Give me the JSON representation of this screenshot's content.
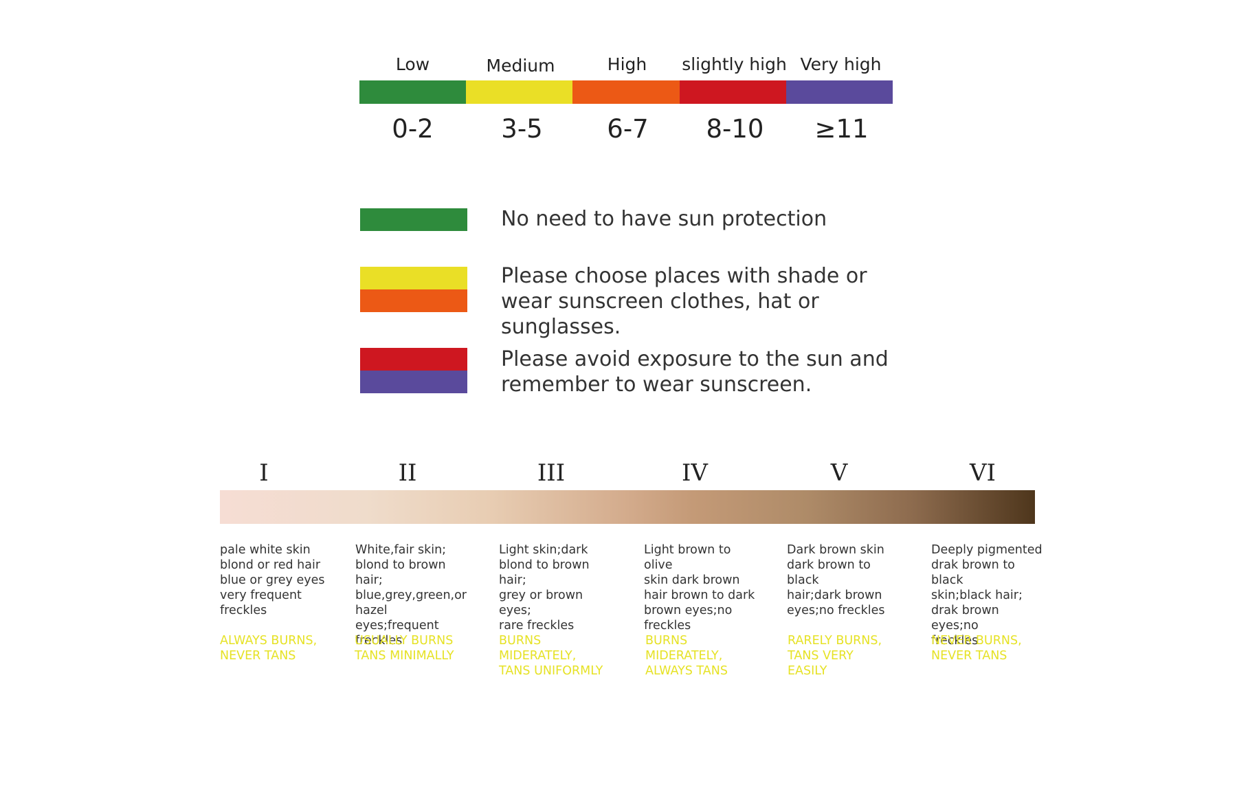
{
  "uv_levels": [
    {
      "label": "Low",
      "range": "0-2",
      "color": "#2e8b3c"
    },
    {
      "label": "Medium",
      "range": "3-5",
      "color": "#eadf26"
    },
    {
      "label": "High",
      "range": "6-7",
      "color": "#ec5915"
    },
    {
      "label": "slightly high",
      "range": "8-10",
      "color": "#ce1720"
    },
    {
      "label": "Very high",
      "range": "≥11",
      "color": "#5a4a9c"
    }
  ],
  "legend": [
    {
      "colors": [
        "#2e8b3c"
      ],
      "text": "No need to have sun protection"
    },
    {
      "colors": [
        "#eadf26",
        "#ec5915"
      ],
      "text": "Please choose places with shade or wear sunscreen clothes, hat or sunglasses."
    },
    {
      "colors": [
        "#ce1720",
        "#5a4a9c"
      ],
      "text": "Please avoid exposure to the sun and remember to wear sunscreen."
    }
  ],
  "skin_types": [
    {
      "numeral": "I",
      "description": "pale white skin\nblond or red hair\nblue or grey eyes\nvery frequent\nfreckles",
      "burn": "ALWAYS BURNS,\nNEVER TANS"
    },
    {
      "numeral": "II",
      "description": "White,fair skin;\nblond to brown hair;\nblue,grey,green,or\nhazel eyes;frequent\nfreckles",
      "burn": "USUALLY BURNS\nTANS MINIMALLY"
    },
    {
      "numeral": "III",
      "description": "Light skin;dark\nblond to brown hair;\ngrey or brown eyes;\nrare freckles",
      "burn": "BURNS\nMIDERATELY,\nTANS UNIFORMLY"
    },
    {
      "numeral": "IV",
      "description": "Light brown to olive\nskin dark brown\nhair brown to dark\nbrown eyes;no\nfreckles",
      "burn": "BURNS\nMIDERATELY,\nALWAYS TANS"
    },
    {
      "numeral": "V",
      "description": "Dark brown skin\ndark brown to black\nhair;dark brown\neyes;no freckles",
      "burn": "RARELY BURNS,\nTANS VERY\nEASILY"
    },
    {
      "numeral": "VI",
      "description": "Deeply pigmented\ndrak brown to black\nskin;black hair;\ndrak brown eyes;no\nfreckles",
      "burn": "NEVER BURNS,\nNEVER TANS"
    }
  ]
}
